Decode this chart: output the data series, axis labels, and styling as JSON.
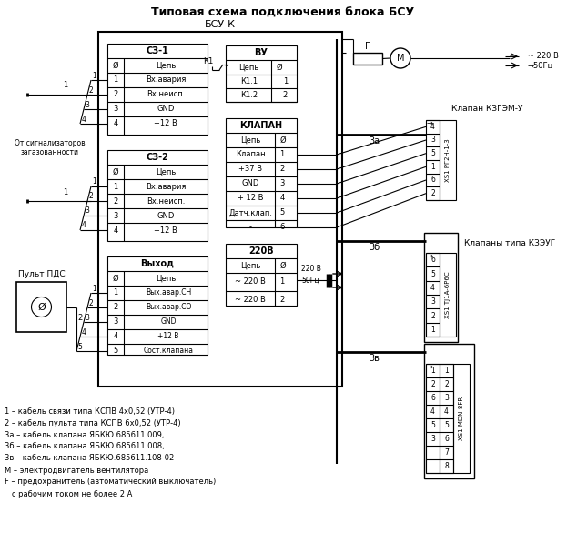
{
  "title": "Типовая схема подключения блока БСУ",
  "bg_color": "#ffffff",
  "diagram": {
    "bsu_k_label": "БСУ-К",
    "sz1_label": "СЗ-1",
    "sz2_label": "СЗ-2",
    "vyhod_label": "Выход",
    "vu_label": "ВУ",
    "klapan_label": "КЛАПАН",
    "v220_label": "220В",
    "k1_label": "К1",
    "f_label": "F",
    "m_label": "М",
    "za_label": "3а",
    "zb_label": "3б",
    "zv_label": "3в",
    "klapan_kzgem_label": "Клапан КЗГЭМ-У",
    "klapan_kzeyg_label": "Клапаны типа КЗЭУГ",
    "pult_label": "Пульт ПДС",
    "ot_signal_label": "От сигнализаторов\nзагазованности"
  },
  "legend": [
    "1 – кабель связи типа КСПВ 4х0,52 (УТР-4)",
    "2 – кабель пульта типа КСПВ 6х0,52 (УТР-4)",
    "3а – кабель клапана ЯБКЮ.685611.009,",
    "3б – кабель клапана ЯБКЮ.685611.008,",
    "3в – кабель клапана ЯБКЮ.685611.108-02",
    "М – электродвигатель вентилятора",
    "F – предохранитель (автоматический выключатель)",
    "   с рабочим током не более 2 А"
  ],
  "sz1_rows": [
    "Вх.авария",
    "Вх.неисп.",
    "GND",
    "+12 В"
  ],
  "sz1_nums": [
    "1",
    "2",
    "3",
    "4"
  ],
  "vy_rows": [
    "Вых.авар.СН",
    "Вых.авар.СО",
    "GND",
    "+12 В",
    "Сост.клапана"
  ],
  "vy_nums": [
    "1",
    "2",
    "3",
    "4",
    "5"
  ],
  "vu_rows": [
    "К1.1",
    "К1.2"
  ],
  "kl_rows": [
    "Клапан",
    "+37 В",
    "GND",
    "+ 12 В",
    "Датч.клап.",
    "-"
  ],
  "kl_nums": [
    "1",
    "2",
    "3",
    "4",
    "5",
    "6"
  ],
  "v220_rows": [
    "~ 220 В",
    "~ 220 В"
  ],
  "v220_nums": [
    "1",
    "2"
  ],
  "cb1_nums": [
    "4",
    "3",
    "5",
    "1",
    "6",
    "2"
  ],
  "cb2_nums": [
    "6",
    "5",
    "4",
    "3",
    "2",
    "1"
  ],
  "cb3_nums": [
    "1",
    "2",
    "6",
    "4",
    "5",
    "3"
  ],
  "cb3_right_nums": [
    "1",
    "2",
    "3",
    "4",
    "5",
    "6",
    "7",
    "8"
  ]
}
